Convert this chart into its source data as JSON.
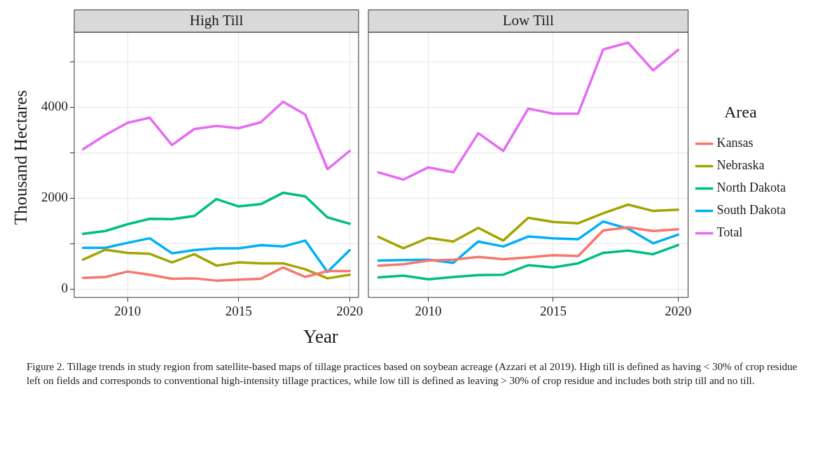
{
  "chart_data": [
    {
      "type": "line",
      "title": "High Till",
      "ylabel": "Thousand Hectares",
      "xlabel": "Year",
      "x": [
        2008,
        2009,
        2010,
        2011,
        2012,
        2013,
        2014,
        2015,
        2016,
        2017,
        2018,
        2019,
        2020
      ],
      "xlim": [
        2007.6,
        2020.4
      ],
      "xticks": [
        2010,
        2015,
        2020
      ],
      "ylim": [
        -180,
        5650
      ],
      "yticks": [
        0,
        {
          "value": 1000,
          "label": null
        },
        2000,
        {
          "value": 3000,
          "label": null
        },
        4000,
        {
          "value": 5000,
          "label": null
        }
      ],
      "grid": true,
      "legend": false,
      "marker": "none",
      "line_style": "solid",
      "series": [
        {
          "color": "#f8766d",
          "values": [
            250,
            270,
            390,
            320,
            230,
            240,
            190,
            210,
            230,
            480,
            270,
            400,
            400
          ]
        },
        {
          "color": "#a3a500",
          "values": [
            650,
            870,
            800,
            780,
            590,
            770,
            520,
            590,
            570,
            570,
            440,
            240,
            320
          ]
        },
        {
          "color": "#00bf7d",
          "values": [
            1220,
            1280,
            1430,
            1550,
            1540,
            1610,
            1980,
            1820,
            1870,
            2120,
            2040,
            1580,
            1440
          ]
        },
        {
          "color": "#00b0f6",
          "values": [
            910,
            910,
            1020,
            1120,
            790,
            860,
            900,
            900,
            970,
            940,
            1070,
            380,
            860
          ]
        },
        {
          "color": "#e76bf3",
          "values": [
            3080,
            3390,
            3660,
            3770,
            3170,
            3520,
            3590,
            3540,
            3670,
            4120,
            3840,
            2640,
            3040
          ]
        }
      ],
      "annotations": [
        "Figure 2. Tillage trends in study region from satellite-based maps of tillage practices based on soybean acreage (Azzari et al 2019). High till is defined as having < 30% of crop residue left on fields and corresponds to conventional high-intensity tillage practices, while low till is defined as leaving > 30% of crop residue and includes both strip till and no till."
      ]
    },
    {
      "type": "line",
      "title": "Low Till",
      "legend_title": "Area",
      "x": [
        2008,
        2009,
        2010,
        2011,
        2012,
        2013,
        2014,
        2015,
        2016,
        2017,
        2018,
        2019,
        2020
      ],
      "xlim": [
        2007.6,
        2020.4
      ],
      "xticks": [
        2010,
        2015,
        2020
      ],
      "ylim": [
        -180,
        5650
      ],
      "yticks": [
        0,
        {
          "value": 1000,
          "label": null
        },
        2000,
        {
          "value": 3000,
          "label": null
        },
        4000,
        {
          "value": 5000,
          "label": null
        }
      ],
      "tick_labels": "x",
      "grid": true,
      "legend": "right",
      "marker": "none",
      "line_style": "solid",
      "series": [
        {
          "name": "Kansas",
          "color": "#f8766d",
          "values": [
            520,
            550,
            630,
            650,
            710,
            660,
            700,
            750,
            730,
            1290,
            1360,
            1280,
            1320
          ]
        },
        {
          "name": "Nebraska",
          "color": "#a3a500",
          "values": [
            1150,
            900,
            1130,
            1050,
            1350,
            1070,
            1570,
            1480,
            1450,
            1670,
            1860,
            1720,
            1750
          ]
        },
        {
          "name": "North Dakota",
          "color": "#00bf7d",
          "values": [
            260,
            300,
            220,
            270,
            310,
            320,
            530,
            480,
            570,
            800,
            850,
            770,
            970
          ]
        },
        {
          "name": "South Dakota",
          "color": "#00b0f6",
          "values": [
            630,
            640,
            650,
            580,
            1050,
            940,
            1160,
            1120,
            1100,
            1490,
            1330,
            1010,
            1200
          ]
        },
        {
          "name": "Total",
          "color": "#e76bf3",
          "values": [
            2570,
            2410,
            2680,
            2570,
            3430,
            3040,
            3970,
            3860,
            3860,
            5270,
            5420,
            4810,
            5260
          ]
        }
      ]
    }
  ]
}
